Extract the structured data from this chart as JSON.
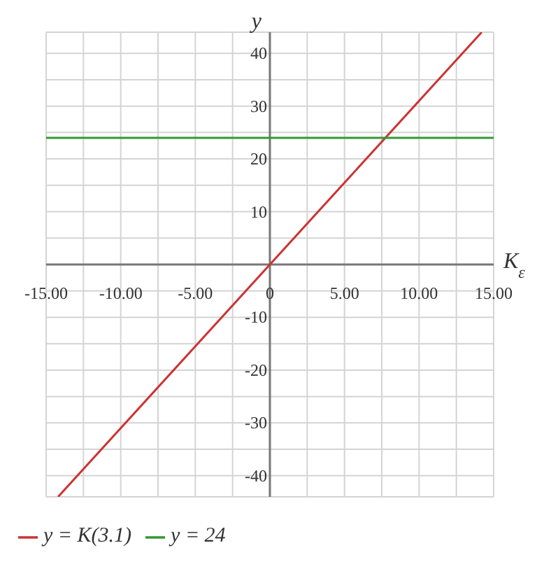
{
  "chart_data": {
    "type": "line",
    "xlabel": "K$_{ε}$",
    "ylabel": "y",
    "xlim": [
      -15,
      15
    ],
    "ylim": [
      -44,
      44
    ],
    "xticks": [
      {
        "value": -15,
        "label": "-15.00"
      },
      {
        "value": -12.5,
        "label": null
      },
      {
        "value": -10,
        "label": "-10.00"
      },
      {
        "value": -7.5,
        "label": null
      },
      {
        "value": -5,
        "label": "-5.00"
      },
      {
        "value": -2.5,
        "label": null
      },
      {
        "value": 0,
        "label": "0"
      },
      {
        "value": 2.5,
        "label": null
      },
      {
        "value": 5,
        "label": "5.00"
      },
      {
        "value": 7.5,
        "label": null
      },
      {
        "value": 10,
        "label": "10.00"
      },
      {
        "value": 12.5,
        "label": null
      },
      {
        "value": 15,
        "label": "15.00"
      }
    ],
    "yticks": [
      {
        "value": -40,
        "label": "-40"
      },
      {
        "value": -35,
        "label": null
      },
      {
        "value": -30,
        "label": "-30"
      },
      {
        "value": -25,
        "label": null
      },
      {
        "value": -20,
        "label": "-20"
      },
      {
        "value": -15,
        "label": null
      },
      {
        "value": -10,
        "label": "-10"
      },
      {
        "value": -5,
        "label": null
      },
      {
        "value": 0,
        "label": null
      },
      {
        "value": 5,
        "label": null
      },
      {
        "value": 10,
        "label": "10"
      },
      {
        "value": 15,
        "label": null
      },
      {
        "value": 20,
        "label": "20"
      },
      {
        "value": 25,
        "label": null
      },
      {
        "value": 30,
        "label": "30"
      },
      {
        "value": 35,
        "label": null
      },
      {
        "value": 40,
        "label": "40"
      }
    ],
    "grid": true,
    "legend": "bottom left",
    "marker": "none",
    "line_style": "solid",
    "series": [
      {
        "name": "y = K(3.1)",
        "color": "#cc3333",
        "x": [
          -14.2,
          14.2
        ],
        "values": [
          -44,
          44
        ]
      },
      {
        "name": "y = 24",
        "color": "#339933",
        "x": [
          -15,
          15
        ],
        "values": [
          24,
          24
        ]
      }
    ]
  }
}
